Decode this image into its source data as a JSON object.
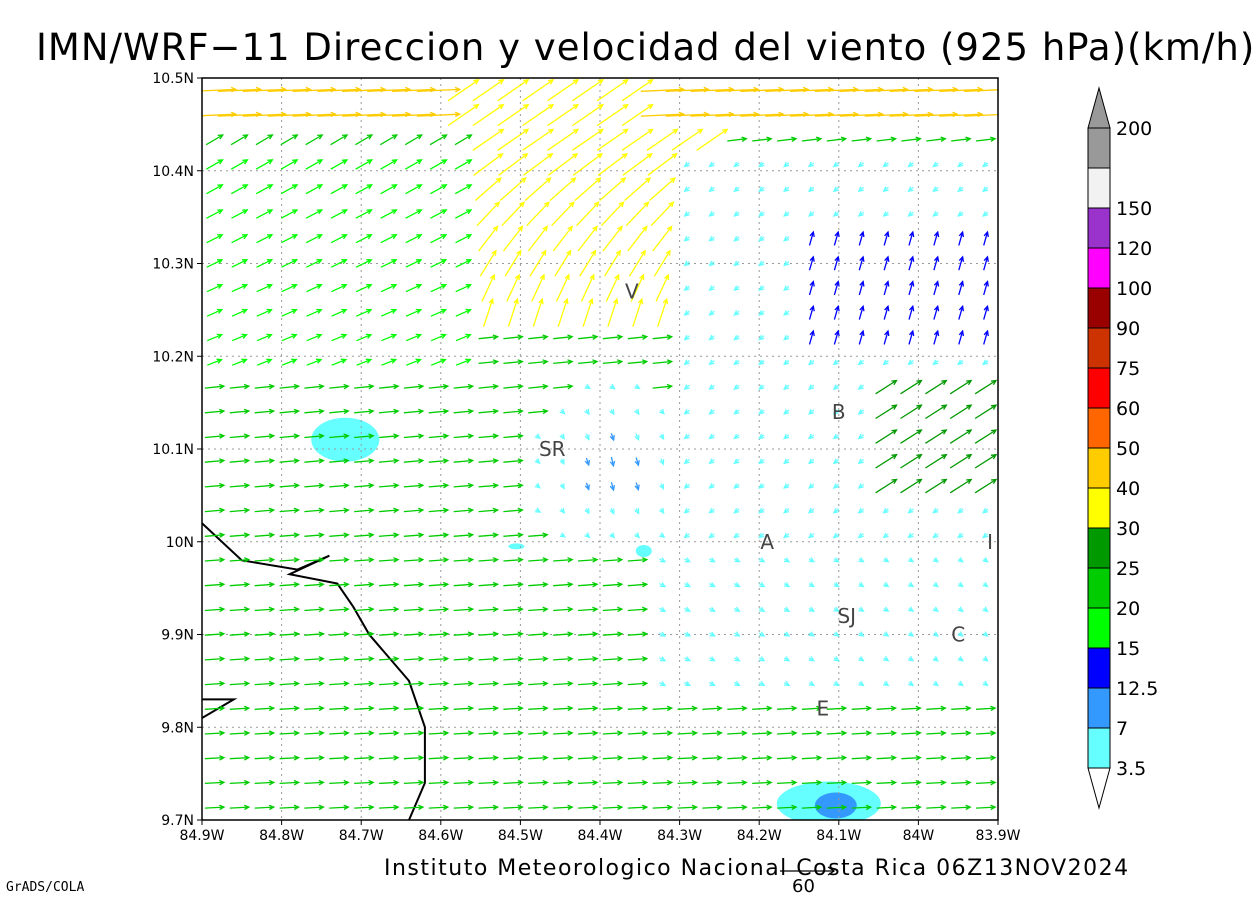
{
  "title": "IMN/WRF−11 Direccion y velocidad del viento (925 hPa)(km/h)",
  "footer": "Instituto Meteorologico Nacional Costa Rica 06Z13NOV2024",
  "grads_label": "GrADS/COLA",
  "chart_data": {
    "type": "vector-field",
    "title": "IMN/WRF−11 Direccion y velocidad del viento (925 hPa)(km/h)",
    "x_range": [
      -84.9,
      -83.9
    ],
    "y_range": [
      9.7,
      10.5
    ],
    "x_ticks": [
      "84.9W",
      "84.8W",
      "84.7W",
      "84.6W",
      "84.5W",
      "84.4W",
      "84.3W",
      "84.2W",
      "84.1W",
      "84W",
      "83.9W"
    ],
    "y_ticks": [
      "9.7N",
      "9.8N",
      "9.9N",
      "10N",
      "10.1N",
      "10.2N",
      "10.3N",
      "10.4N",
      "10.5N"
    ],
    "grid": "dotted",
    "reference_vector": {
      "label": "60",
      "speed_kmh": 60
    },
    "colorbar": {
      "levels": [
        "3.5",
        "7",
        "12.5",
        "15",
        "20",
        "25",
        "30",
        "40",
        "50",
        "60",
        "75",
        "90",
        "100",
        "120",
        "150",
        "200"
      ],
      "colors": [
        "#66ffff",
        "#3399ff",
        "#0000ff",
        "#00ff00",
        "#00cc00",
        "#009900",
        "#ffff00",
        "#ffcc00",
        "#ff6600",
        "#ff0000",
        "#cc3300",
        "#990000",
        "#ff00ff",
        "#9933cc",
        "#f2f2f2",
        "#999999"
      ]
    },
    "locations": [
      {
        "label": "V",
        "lon": -84.36,
        "lat": 10.27
      },
      {
        "label": "B",
        "lon": -84.1,
        "lat": 10.14
      },
      {
        "label": "SR",
        "lon": -84.46,
        "lat": 10.1
      },
      {
        "label": "A",
        "lon": -84.19,
        "lat": 10.0
      },
      {
        "label": "I",
        "lon": -83.91,
        "lat": 10.0
      },
      {
        "label": "SJ",
        "lon": -84.09,
        "lat": 9.92
      },
      {
        "label": "C",
        "lon": -83.95,
        "lat": 9.9
      },
      {
        "label": "E",
        "lon": -84.12,
        "lat": 9.82
      }
    ],
    "shaded_regions": [
      {
        "lon": -84.72,
        "lat": 10.11,
        "level": "3.5"
      },
      {
        "lon": -84.1,
        "lat": 9.72,
        "level": "3.5"
      },
      {
        "lon": -84.1,
        "lat": 9.72,
        "level": "7"
      }
    ]
  }
}
